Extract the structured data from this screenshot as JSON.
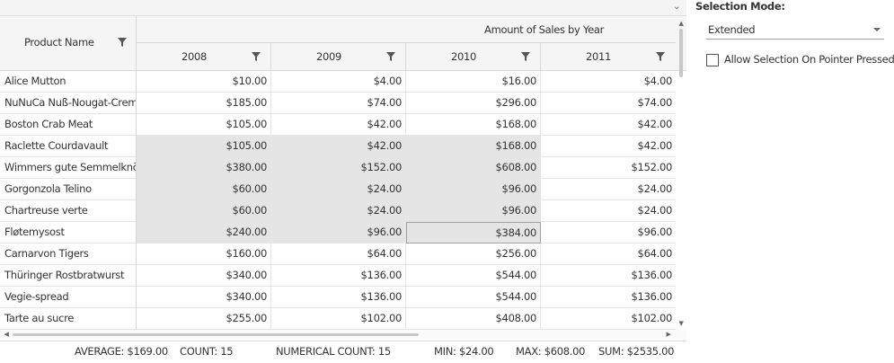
{
  "grid": {
    "row_header": "Product Name",
    "column_title": "Amount of Sales by Year",
    "years": [
      "2008",
      "2009",
      "2010",
      "2011"
    ],
    "rows": [
      {
        "name": "Alice Mutton",
        "values": [
          "$10.00",
          "$4.00",
          "$16.00",
          "$4.00"
        ],
        "selected": [
          false,
          false,
          false,
          false
        ]
      },
      {
        "name": "NuNuCa Nuß-Nougat-Creme",
        "values": [
          "$185.00",
          "$74.00",
          "$296.00",
          "$74.00"
        ],
        "selected": [
          false,
          false,
          false,
          false
        ]
      },
      {
        "name": "Boston Crab Meat",
        "values": [
          "$105.00",
          "$42.00",
          "$168.00",
          "$42.00"
        ],
        "selected": [
          false,
          false,
          false,
          false
        ]
      },
      {
        "name": "Raclette Courdavault",
        "values": [
          "$105.00",
          "$42.00",
          "$168.00",
          "$42.00"
        ],
        "selected": [
          true,
          true,
          true,
          false
        ]
      },
      {
        "name": "Wimmers gute Semmelknödel",
        "values": [
          "$380.00",
          "$152.00",
          "$608.00",
          "$152.00"
        ],
        "selected": [
          true,
          true,
          true,
          false
        ]
      },
      {
        "name": "Gorgonzola Telino",
        "values": [
          "$60.00",
          "$24.00",
          "$96.00",
          "$24.00"
        ],
        "selected": [
          true,
          true,
          true,
          false
        ]
      },
      {
        "name": "Chartreuse verte",
        "values": [
          "$60.00",
          "$24.00",
          "$96.00",
          "$24.00"
        ],
        "selected": [
          true,
          true,
          true,
          false
        ]
      },
      {
        "name": "Fløtemysost",
        "values": [
          "$240.00",
          "$96.00",
          "$384.00",
          "$96.00"
        ],
        "selected": [
          true,
          true,
          true,
          false
        ],
        "current": 2
      },
      {
        "name": "Carnarvon Tigers",
        "values": [
          "$160.00",
          "$64.00",
          "$256.00",
          "$64.00"
        ],
        "selected": [
          false,
          false,
          false,
          false
        ]
      },
      {
        "name": "Thüringer Rostbratwurst",
        "values": [
          "$340.00",
          "$136.00",
          "$544.00",
          "$136.00"
        ],
        "selected": [
          false,
          false,
          false,
          false
        ]
      },
      {
        "name": "Vegie-spread",
        "values": [
          "$340.00",
          "$136.00",
          "$544.00",
          "$136.00"
        ],
        "selected": [
          false,
          false,
          false,
          false
        ]
      },
      {
        "name": "Tarte au sucre",
        "values": [
          "$255.00",
          "$102.00",
          "$408.00",
          "$102.00"
        ],
        "selected": [
          false,
          false,
          false,
          false
        ]
      }
    ]
  },
  "status_bar": {
    "average": "AVERAGE: $169.00",
    "count": "COUNT: 15",
    "numerical_count": "NUMERICAL COUNT: 15",
    "min": "MIN: $24.00",
    "max": "MAX: $608.00",
    "sum": "SUM: $2535.00"
  },
  "options": {
    "selection_mode_label": "Selection Mode:",
    "selection_mode_value": "Extended",
    "allow_selection_label": "Allow Selection On Pointer Pressed",
    "allow_selection_checked": false
  },
  "colors": {
    "selected_cell": "#e5e5e5",
    "header_bg": "#f5f5f5"
  }
}
